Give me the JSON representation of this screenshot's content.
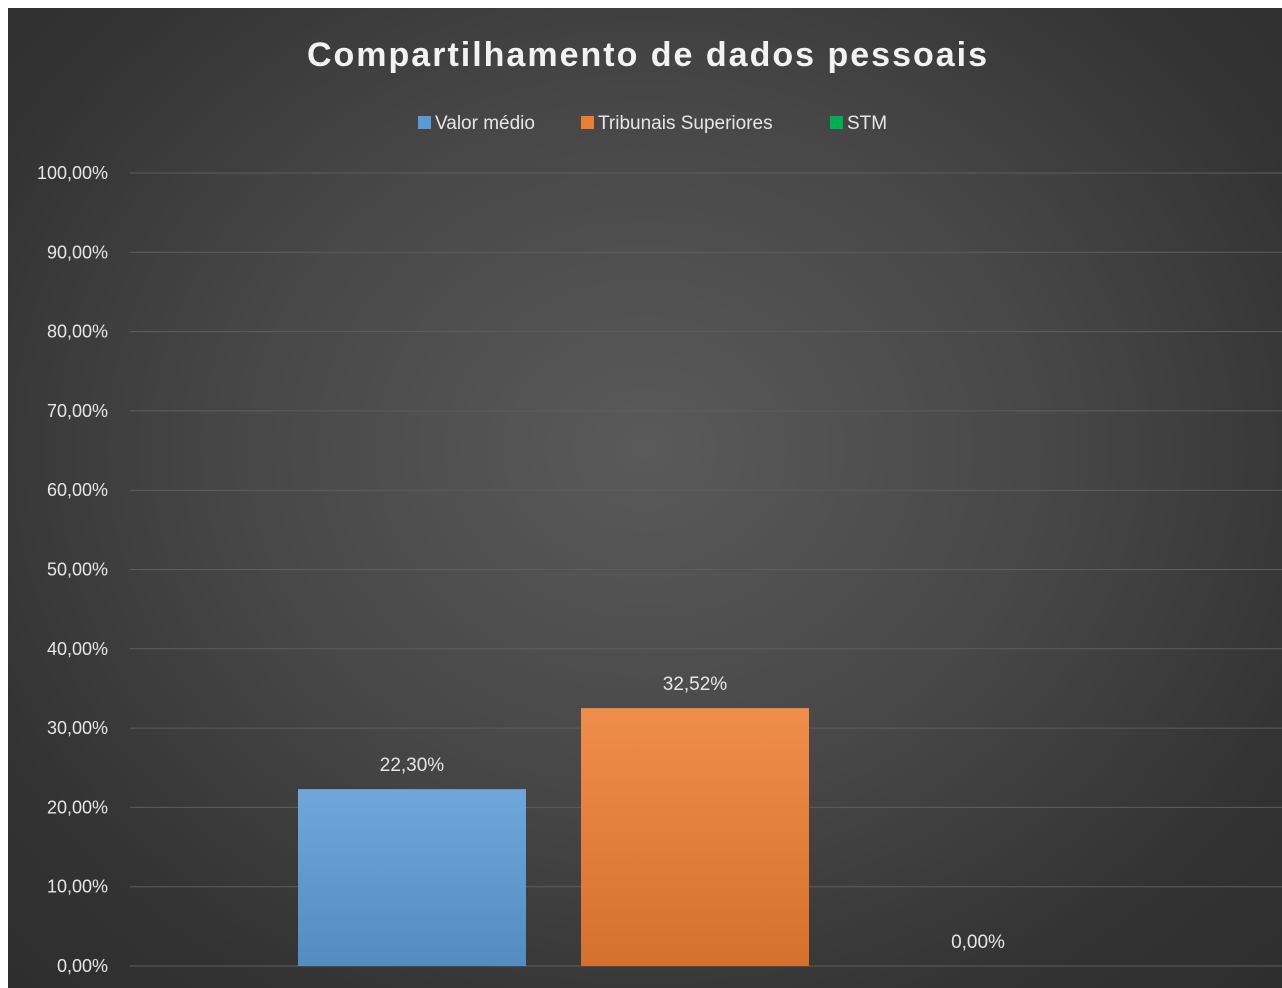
{
  "chart_data": {
    "type": "bar",
    "title": "Compartilhamento de dados pessoais",
    "categories": [
      ""
    ],
    "series": [
      {
        "name": "Valor médio",
        "values": [
          22.3
        ],
        "label": "22,30%",
        "color": "#5b9bd5"
      },
      {
        "name": "Tribunais Superiores",
        "values": [
          32.52
        ],
        "label": "32,52%",
        "color": "#ed7d31"
      },
      {
        "name": "STM",
        "values": [
          0.0
        ],
        "label": "0,00%",
        "color": "#00b050"
      }
    ],
    "yticks": [
      {
        "value": 0,
        "label": "0,00%"
      },
      {
        "value": 10,
        "label": "10,00%"
      },
      {
        "value": 20,
        "label": "20,00%"
      },
      {
        "value": 30,
        "label": "30,00%"
      },
      {
        "value": 40,
        "label": "40,00%"
      },
      {
        "value": 50,
        "label": "50,00%"
      },
      {
        "value": 60,
        "label": "60,00%"
      },
      {
        "value": 70,
        "label": "70,00%"
      },
      {
        "value": 80,
        "label": "80,00%"
      },
      {
        "value": 90,
        "label": "90,00%"
      },
      {
        "value": 100,
        "label": "100,00%"
      }
    ],
    "ylim": [
      0,
      100
    ],
    "xlabel": "",
    "ylabel": "",
    "grid": true,
    "legend_position": "top"
  }
}
